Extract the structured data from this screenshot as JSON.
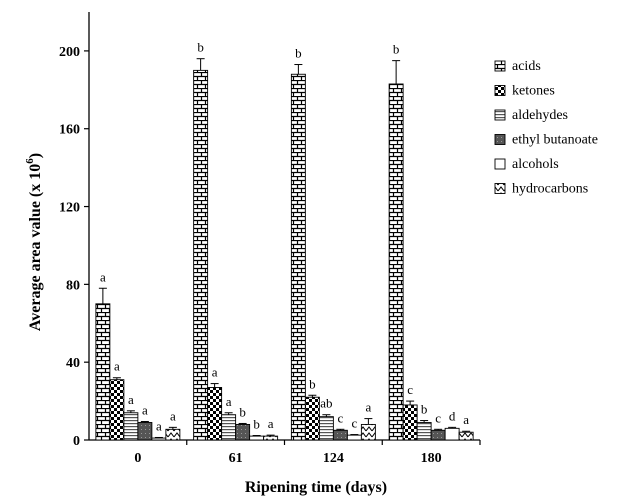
{
  "chart_data": {
    "type": "bar",
    "xlabel": "Ripening time (days)",
    "ylabel": "Average area value (x 10",
    "ylabel_sup": "6",
    "ylabel_end": ")",
    "ylim": [
      0,
      220
    ],
    "yticks": [
      0,
      40,
      80,
      120,
      160,
      200
    ],
    "yticklabels": [
      "0",
      "40",
      "80",
      "120",
      "160",
      "200"
    ],
    "categories": [
      "0",
      "61",
      "124",
      "180"
    ],
    "legend_position": "right",
    "series": [
      {
        "name": "acids",
        "pattern": "brick",
        "values": [
          70,
          190,
          188,
          183
        ],
        "errors": [
          8,
          6,
          5,
          12
        ],
        "letters": [
          "a",
          "b",
          "b",
          "b"
        ]
      },
      {
        "name": "ketones",
        "pattern": "checker",
        "values": [
          31,
          27,
          22,
          18
        ],
        "errors": [
          1,
          2,
          1,
          2
        ],
        "letters": [
          "a",
          "a",
          "b",
          "c"
        ]
      },
      {
        "name": "aldehydes",
        "pattern": "hstripes",
        "values": [
          14,
          13,
          12,
          9
        ],
        "errors": [
          1,
          1,
          1,
          1
        ],
        "letters": [
          "a",
          "a",
          "ab",
          "b"
        ]
      },
      {
        "name": "ethyl butanoate",
        "pattern": "darkdots",
        "values": [
          9,
          8,
          5,
          5
        ],
        "errors": [
          0.5,
          0.5,
          0.5,
          0.5
        ],
        "letters": [
          "a",
          "b",
          "c",
          "c"
        ]
      },
      {
        "name": "alcohols",
        "pattern": "white",
        "values": [
          1,
          2,
          2.5,
          6
        ],
        "errors": [
          0.3,
          0.3,
          0.3,
          0.5
        ],
        "letters": [
          "a",
          "b",
          "c",
          "d"
        ]
      },
      {
        "name": "hydrocarbons",
        "pattern": "zigzag",
        "values": [
          5.5,
          2,
          8,
          4
        ],
        "errors": [
          1,
          0.5,
          3,
          0.5
        ],
        "letters": [
          "a",
          "a",
          "a",
          "a"
        ]
      }
    ]
  }
}
